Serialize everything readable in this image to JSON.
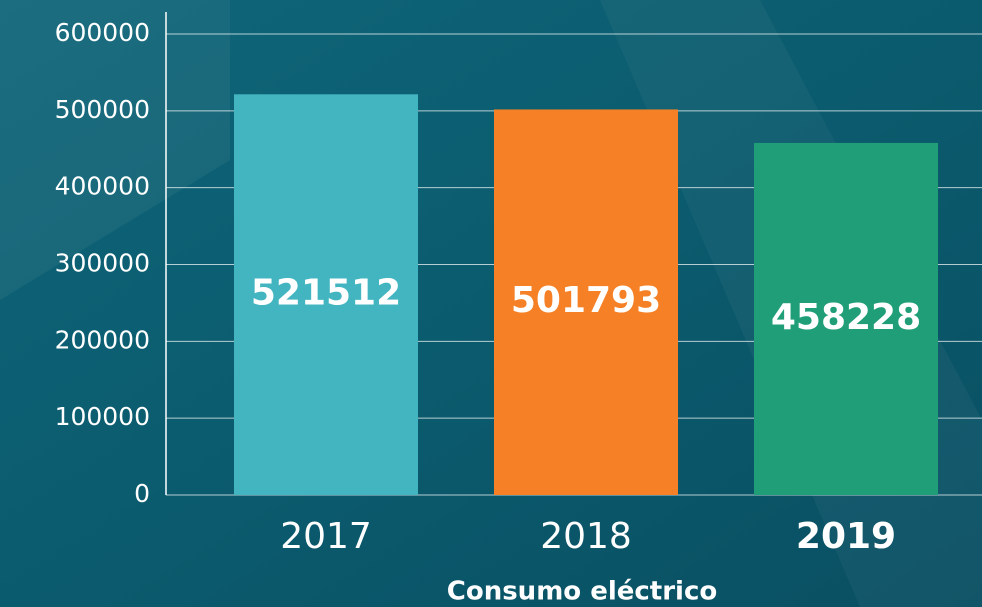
{
  "chart_data": {
    "type": "bar",
    "x_label": "Consumo eléctrico",
    "categories": [
      "2017",
      "2018",
      "2019"
    ],
    "values": [
      521512,
      501793,
      458228
    ],
    "colors": [
      "#43b5c1",
      "#f58025",
      "#1f9e78"
    ],
    "ylim": [
      0,
      600000
    ],
    "yticks": [
      0,
      100000,
      200000,
      300000,
      400000,
      500000,
      600000
    ],
    "grid": true
  }
}
